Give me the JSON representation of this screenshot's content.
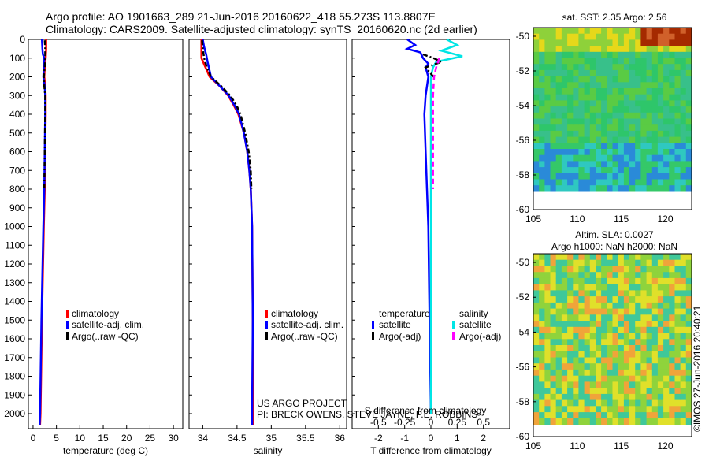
{
  "header": {
    "line1": "Argo profile: AO 1901663_289 21-Jun-2016 20160622_418 55.273S 113.8807E",
    "line2": "Climatology: CARS2009. Satellite-adjusted climatology: synTS_20160620.nc (2d earlier)"
  },
  "colors": {
    "climatology": "#ff0000",
    "satellite": "#0000ff",
    "argo": "#000000",
    "satellite_salinity": "#00e5e5",
    "argo_salinity": "#ff00ff"
  },
  "chart_data": [
    {
      "type": "line",
      "name": "temperature-profile",
      "xlabel": "temperature (deg C)",
      "ylabel": "",
      "xlim": [
        -1,
        32
      ],
      "ylim": [
        2080,
        0
      ],
      "xticks": [
        "0",
        "5",
        "10",
        "15",
        "20",
        "25",
        "30"
      ],
      "yticks": [
        "0",
        "100",
        "200",
        "300",
        "400",
        "500",
        "600",
        "700",
        "800",
        "900",
        "1000",
        "1100",
        "1200",
        "1300",
        "1400",
        "1500",
        "1600",
        "1700",
        "1800",
        "1900",
        "2000"
      ],
      "legend": [
        "climatology",
        "satellite-adj. clim.",
        "Argo(..raw -QC)"
      ],
      "series": [
        {
          "name": "climatology",
          "depth": [
            0,
            50,
            100,
            150,
            200,
            250,
            300,
            400,
            600,
            800,
            1000,
            1500,
            2000,
            2060
          ],
          "values": [
            2.8,
            2.8,
            2.7,
            2.5,
            2.4,
            2.6,
            2.7,
            2.7,
            2.6,
            2.5,
            2.3,
            1.9,
            1.6,
            1.5
          ]
        },
        {
          "name": "satellite-adj. clim.",
          "depth": [
            0,
            50,
            80,
            100,
            150,
            200,
            250,
            300,
            400,
            600,
            800,
            1000,
            1500,
            2000,
            2060
          ],
          "values": [
            1.9,
            2.0,
            2.1,
            2.4,
            2.3,
            2.2,
            2.5,
            2.6,
            2.6,
            2.5,
            2.4,
            2.2,
            1.8,
            1.5,
            1.4
          ]
        },
        {
          "name": "Argo(..raw -QC)",
          "depth": [
            5,
            50,
            100,
            150,
            200,
            250,
            300,
            400,
            600,
            800
          ],
          "values": [
            2.5,
            2.6,
            2.6,
            2.5,
            2.3,
            2.4,
            2.6,
            2.6,
            2.5,
            2.4
          ]
        }
      ]
    },
    {
      "type": "line",
      "name": "salinity-profile",
      "xlabel": "salinity",
      "xlim": [
        33.8,
        36.1
      ],
      "ylim": [
        2080,
        0
      ],
      "xticks": [
        "34",
        "34.5",
        "35",
        "35.5",
        "36"
      ],
      "legend": [
        "climatology",
        "satellite-adj. clim.",
        "Argo(..raw -QC)"
      ],
      "series": [
        {
          "name": "climatology",
          "depth": [
            0,
            100,
            200,
            250,
            300,
            350,
            400,
            500,
            600,
            700,
            800,
            1000,
            1500,
            2000,
            2060
          ],
          "values": [
            33.98,
            33.98,
            34.1,
            34.25,
            34.37,
            34.45,
            34.52,
            34.6,
            34.65,
            34.68,
            34.7,
            34.72,
            34.73,
            34.73,
            34.73
          ]
        },
        {
          "name": "satellite-adj. clim.",
          "depth": [
            0,
            40,
            80,
            120,
            200,
            250,
            300,
            350,
            400,
            500,
            600,
            700,
            800,
            1000,
            1500,
            2000,
            2060
          ],
          "values": [
            34.0,
            34.02,
            34.05,
            34.07,
            34.12,
            34.25,
            34.38,
            34.46,
            34.53,
            34.6,
            34.65,
            34.68,
            34.7,
            34.72,
            34.73,
            34.72,
            34.72
          ]
        },
        {
          "name": "Argo(..raw -QC)",
          "depth": [
            5,
            50,
            100,
            150,
            200,
            250,
            300,
            350,
            400,
            500,
            600,
            700,
            800
          ],
          "values": [
            33.99,
            34.0,
            34.02,
            34.06,
            34.12,
            34.27,
            34.4,
            34.49,
            34.55,
            34.62,
            34.67,
            34.7,
            34.71
          ]
        }
      ]
    },
    {
      "type": "line",
      "name": "difference-profile",
      "xlabel": "T difference from climatology",
      "top_label": "S difference from climatology",
      "xlim": [
        -3,
        3
      ],
      "ylim": [
        2080,
        0
      ],
      "xticks": [
        "-2",
        "-1",
        "0",
        "1",
        "2"
      ],
      "top_ticks": [
        "-0.5",
        "-0.25",
        "0",
        "0.25",
        "0.5"
      ],
      "legend_temperature_title": "temperature",
      "legend_salinity_title": "salinity",
      "legend_temperature": [
        "satellite",
        "Argo(-adj)"
      ],
      "legend_salinity": [
        "satellite",
        "Argo(-adj)"
      ],
      "series": [
        {
          "name": "T satellite",
          "depth": [
            0,
            30,
            50,
            70,
            100,
            130,
            150,
            200,
            250,
            300,
            400,
            600,
            800,
            1000,
            1500,
            2000
          ],
          "values": [
            -0.9,
            -0.6,
            -0.9,
            -0.4,
            -0.3,
            -0.1,
            -0.2,
            -0.1,
            -0.15,
            -0.2,
            -0.25,
            -0.2,
            -0.15,
            -0.1,
            -0.05,
            0
          ]
        },
        {
          "name": "S satellite",
          "depth": [
            0,
            30,
            60,
            90,
            120,
            150,
            200,
            300,
            500,
            800,
            1000,
            1500,
            2000
          ],
          "values": [
            0.15,
            0.25,
            0.1,
            0.3,
            0.05,
            0.02,
            0.0,
            0.0,
            0.0,
            0.0,
            0.0,
            0.0,
            0.0
          ]
        },
        {
          "name": "T Argo(-adj)",
          "depth": [
            80,
            100,
            120,
            150,
            200
          ],
          "values": [
            -0.3,
            0.1,
            0.4,
            -0.2,
            0.1
          ]
        },
        {
          "name": "S Argo(-adj)",
          "depth": [
            100,
            150,
            200,
            300,
            400,
            600,
            800
          ],
          "values": [
            0.08,
            0.05,
            0.03,
            0.02,
            0.02,
            0.02,
            0.02
          ]
        }
      ]
    }
  ],
  "sst_map": {
    "title": "sat. SST: 2.35 Argo: 2.56",
    "xticks": [
      "105",
      "110",
      "115",
      "120"
    ],
    "yticks": [
      "-50",
      "-52",
      "-54",
      "-56",
      "-58",
      "-60"
    ]
  },
  "sla_map": {
    "title_line1": "Altim. SLA: 0.0027",
    "title_line2": "Argo h1000: NaN h2000: NaN",
    "xticks": [
      "105",
      "110",
      "115",
      "120"
    ],
    "yticks": [
      "-50",
      "-52",
      "-54",
      "-56",
      "-58",
      "-60"
    ]
  },
  "footer": {
    "project": "US ARGO PROJECT",
    "pi": "PI: BRECK OWENS, STEVE JAYNE, P.E. ROBBINS",
    "watermark": "©IMOS 27-Jun-2016 20:40:21"
  }
}
